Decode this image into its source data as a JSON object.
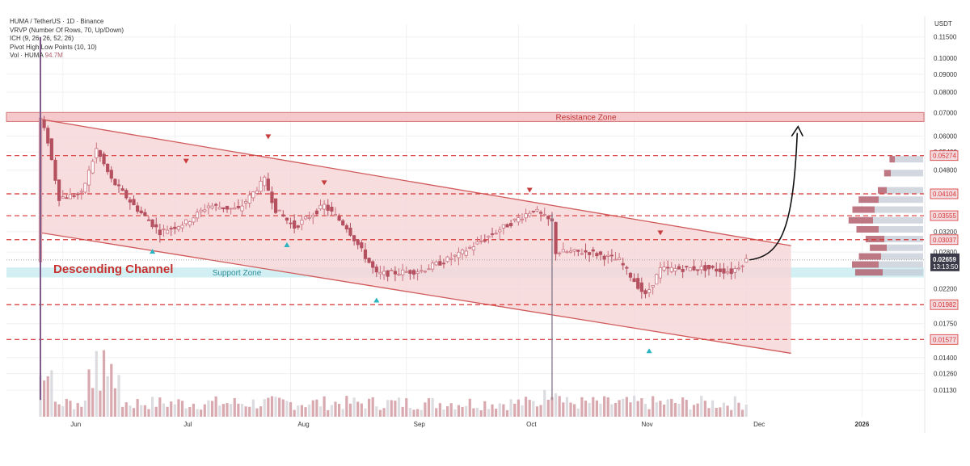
{
  "legend": {
    "line1": "HUMA / TetherUS · 1D · Binance",
    "line2": "VRVP (Number Of Rows, 70, Up/Down)",
    "line3": "ICH (9, 26, 26, 52, 26)",
    "line4": "Pivot High Low Points (10, 10)",
    "vol_label": "Vol · HUMA",
    "vol_value": "94.7M"
  },
  "axis_unit": "USDT",
  "annotations": {
    "resistance_zone": "Resistance Zone",
    "support_zone": "Support Zone",
    "channel": "Descending Channel"
  },
  "colors": {
    "channel_fill": "#f6d5d7",
    "channel_line": "#d05a5a",
    "resistance_fill": "#f4c0c4",
    "support_fill": "#cdeef2",
    "level_line": "#d83434",
    "candle": "#b4505f",
    "volume_bar": "#d9a9b0",
    "volume_bar_light": "#dcdce0",
    "vrvp_up": "#b2606e",
    "vrvp_down": "#c3cad6",
    "pivot_marker": "#c73d3d",
    "pivot_low_marker": "#2ab3c0"
  },
  "chart_data": {
    "type": "candlestick",
    "pair": "HUMA / TetherUS",
    "interval": "1D",
    "exchange": "Binance",
    "y_scale": "log",
    "ylim": [
      0.0105,
      0.125
    ],
    "y_ticks": [
      0.115,
      0.1,
      0.09,
      0.08,
      0.07,
      0.06,
      0.054,
      0.048,
      0.041,
      0.032,
      0.028,
      0.022,
      0.0175,
      0.014,
      0.0126,
      0.0113
    ],
    "y_tick_labels": [
      "0.11500",
      "0.10000",
      "0.09000",
      "0.08000",
      "0.07000",
      "0.06000",
      "0.05400",
      "0.04800",
      "0.04100",
      "0.03200",
      "0.02800",
      "0.02200",
      "0.01750",
      "0.01400",
      "0.01260",
      "0.01130"
    ],
    "x_ticks": [
      {
        "date": "2025-06-01",
        "label": "Jun"
      },
      {
        "date": "2025-07-01",
        "label": "Jul"
      },
      {
        "date": "2025-08-01",
        "label": "Aug"
      },
      {
        "date": "2025-09-01",
        "label": "Sep"
      },
      {
        "date": "2025-10-01",
        "label": "Oct"
      },
      {
        "date": "2025-11-01",
        "label": "Nov"
      },
      {
        "date": "2025-12-01",
        "label": "Dec"
      },
      {
        "date": "2026-01-01",
        "label": "2026"
      }
    ],
    "price_levels": [
      {
        "value": 0.05274,
        "label": "0.05274"
      },
      {
        "value": 0.04104,
        "label": "0.04104"
      },
      {
        "value": 0.03555,
        "label": "0.03555"
      },
      {
        "value": 0.03037,
        "label": "0.03037"
      },
      {
        "value": 0.01982,
        "label": "0.01982"
      },
      {
        "value": 0.01577,
        "label": "0.01577"
      }
    ],
    "current_price": {
      "value": 0.02659,
      "label": "0.02659",
      "countdown": "13:13:50"
    },
    "resistance_zone": [
      0.066,
      0.07
    ],
    "support_zone": [
      0.0237,
      0.0253
    ],
    "channel": {
      "upper": [
        {
          "date": "2025-05-26",
          "price": 0.067
        },
        {
          "date": "2025-12-13",
          "price": 0.0292
        }
      ],
      "lower": [
        {
          "date": "2025-05-26",
          "price": 0.0318
        },
        {
          "date": "2025-12-13",
          "price": 0.0144
        }
      ]
    },
    "projection_arrow": {
      "from": {
        "date": "2025-12-01",
        "price": 0.0266
      },
      "to": {
        "date": "2025-12-06",
        "price": 0.0625
      }
    },
    "pivot_highs": [
      {
        "date": "2025-07-26",
        "price": 0.0575
      },
      {
        "date": "2025-07-04",
        "price": 0.049
      },
      {
        "date": "2025-08-10",
        "price": 0.0425
      },
      {
        "date": "2025-10-04",
        "price": 0.0405
      },
      {
        "date": "2025-11-08",
        "price": 0.0306
      }
    ],
    "pivot_lows": [
      {
        "date": "2025-06-25",
        "price": 0.0292
      },
      {
        "date": "2025-07-31",
        "price": 0.0305
      },
      {
        "date": "2025-08-24",
        "price": 0.0212
      },
      {
        "date": "2025-11-05",
        "price": 0.0152
      }
    ],
    "price_path": [
      {
        "date": "2025-05-26",
        "price": 0.067
      },
      {
        "date": "2025-05-28",
        "price": 0.058
      },
      {
        "date": "2025-05-31",
        "price": 0.04
      },
      {
        "date": "2025-06-06",
        "price": 0.041
      },
      {
        "date": "2025-06-10",
        "price": 0.055
      },
      {
        "date": "2025-06-14",
        "price": 0.045
      },
      {
        "date": "2025-06-20",
        "price": 0.038
      },
      {
        "date": "2025-06-27",
        "price": 0.032
      },
      {
        "date": "2025-07-04",
        "price": 0.034
      },
      {
        "date": "2025-07-10",
        "price": 0.038
      },
      {
        "date": "2025-07-18",
        "price": 0.037
      },
      {
        "date": "2025-07-25",
        "price": 0.045
      },
      {
        "date": "2025-07-28",
        "price": 0.037
      },
      {
        "date": "2025-08-02",
        "price": 0.033
      },
      {
        "date": "2025-08-10",
        "price": 0.038
      },
      {
        "date": "2025-08-16",
        "price": 0.033
      },
      {
        "date": "2025-08-24",
        "price": 0.0242
      },
      {
        "date": "2025-09-05",
        "price": 0.0248
      },
      {
        "date": "2025-09-15",
        "price": 0.0275
      },
      {
        "date": "2025-09-25",
        "price": 0.032
      },
      {
        "date": "2025-10-05",
        "price": 0.037
      },
      {
        "date": "2025-10-10",
        "price": 0.034
      },
      {
        "date": "2025-10-11",
        "price": 0.028
      },
      {
        "date": "2025-10-20",
        "price": 0.028
      },
      {
        "date": "2025-10-28",
        "price": 0.0265
      },
      {
        "date": "2025-11-04",
        "price": 0.021
      },
      {
        "date": "2025-11-08",
        "price": 0.025
      },
      {
        "date": "2025-11-20",
        "price": 0.0252
      },
      {
        "date": "2025-11-27",
        "price": 0.0246
      },
      {
        "date": "2025-12-01",
        "price": 0.0266
      }
    ],
    "volume_profile": [
      {
        "price": 0.0515,
        "up": 0.12,
        "down": 0.35
      },
      {
        "price": 0.047,
        "up": 0.15,
        "down": 0.4
      },
      {
        "price": 0.042,
        "up": 0.2,
        "down": 0.45
      },
      {
        "price": 0.0395,
        "up": 0.45,
        "down": 0.55
      },
      {
        "price": 0.037,
        "up": 0.5,
        "down": 0.6
      },
      {
        "price": 0.0345,
        "up": 0.55,
        "down": 0.62
      },
      {
        "price": 0.0325,
        "up": 0.5,
        "down": 0.55
      },
      {
        "price": 0.0305,
        "up": 0.42,
        "down": 0.48
      },
      {
        "price": 0.0288,
        "up": 0.38,
        "down": 0.45
      },
      {
        "price": 0.0272,
        "up": 0.5,
        "down": 0.52
      },
      {
        "price": 0.0258,
        "up": 0.6,
        "down": 0.55
      },
      {
        "price": 0.0245,
        "up": 0.62,
        "down": 0.5
      }
    ]
  }
}
